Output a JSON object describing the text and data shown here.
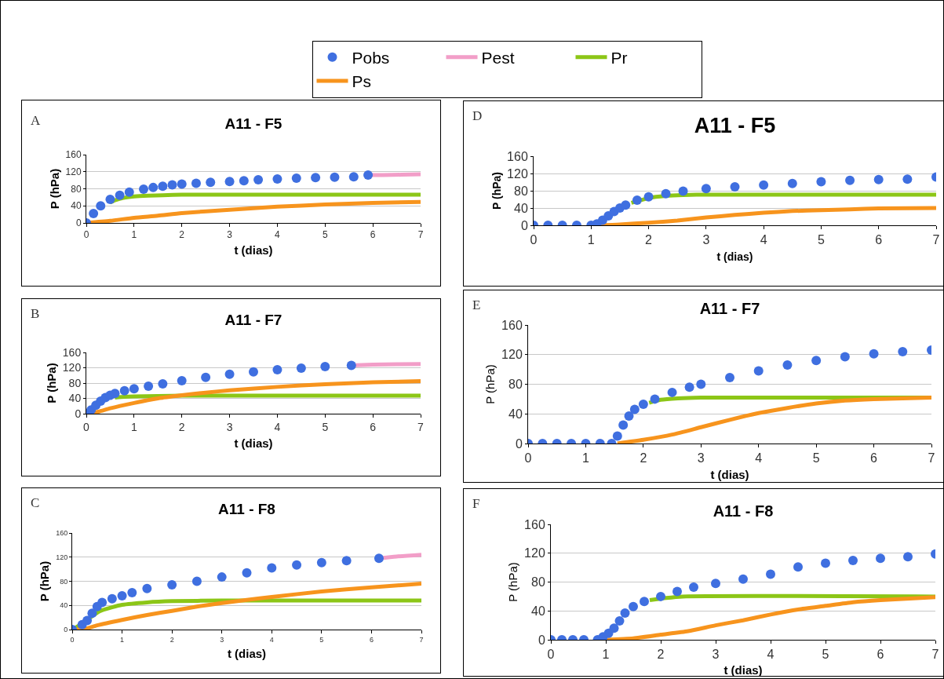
{
  "chart_data": [
    {
      "type": "line",
      "title": "A11 - F5",
      "xlabel": "t (dias)",
      "ylabel": "P (hPa)",
      "annotations": [
        "A"
      ],
      "xlim": [
        0,
        7
      ],
      "ylim": [
        0,
        160
      ],
      "xticks": [
        0,
        1,
        2,
        3,
        4,
        5,
        6,
        7
      ],
      "yticks": [
        0,
        40,
        80,
        120,
        160
      ],
      "grid": "y",
      "legend": "top",
      "line_style": "solid",
      "series": [
        {
          "name": "Pobs",
          "type": "scatter",
          "marker": "circle",
          "color": "#3f6fe0",
          "x": [
            0,
            0.15,
            0.3,
            0.5,
            0.7,
            0.9,
            1.2,
            1.4,
            1.6,
            1.8,
            2,
            2.3,
            2.6,
            3,
            3.3,
            3.6,
            4,
            4.4,
            4.8,
            5.2,
            5.6,
            5.9
          ],
          "values": [
            0,
            22,
            40,
            55,
            65,
            72,
            79,
            83,
            86,
            89,
            91,
            93,
            95,
            97,
            99,
            101,
            103,
            105,
            106,
            107,
            108,
            112
          ]
        },
        {
          "name": "Pest",
          "color": "#f29ec8",
          "x": [
            5.9,
            6.2,
            6.6,
            7
          ],
          "values": [
            112,
            112,
            113,
            114
          ]
        },
        {
          "name": "Pr",
          "color": "#8cc617",
          "x": [
            0.5,
            0.6,
            0.8,
            1,
            1.3,
            1.6,
            2,
            3,
            7
          ],
          "values": [
            48,
            53,
            59,
            62,
            64,
            65,
            66,
            66,
            66
          ]
        },
        {
          "name": "Ps",
          "color": "#f7941d",
          "x": [
            0,
            0.5,
            1,
            1.5,
            2,
            3,
            4,
            5,
            6,
            7
          ],
          "values": [
            0,
            5,
            12,
            17,
            23,
            31,
            38,
            43,
            47,
            49
          ]
        }
      ]
    },
    {
      "type": "line",
      "title": "A11 - F7",
      "xlabel": "t (dias)",
      "ylabel": "P (hPa)",
      "annotations": [
        "B"
      ],
      "xlim": [
        0,
        7
      ],
      "ylim": [
        0,
        160
      ],
      "xticks": [
        0,
        1,
        2,
        3,
        4,
        5,
        6,
        7
      ],
      "yticks": [
        0,
        40,
        80,
        120,
        160
      ],
      "grid": "y",
      "line_style": "solid",
      "series": [
        {
          "type": "scatter",
          "marker": "circle",
          "color": "#3f6fe0",
          "x": [
            0,
            0.1,
            0.2,
            0.3,
            0.4,
            0.5,
            0.6,
            0.8,
            1,
            1.3,
            1.6,
            2,
            2.5,
            3,
            3.5,
            4,
            4.5,
            5,
            5.55
          ],
          "values": [
            0,
            10,
            22,
            33,
            42,
            48,
            53,
            60,
            65,
            72,
            78,
            86,
            95,
            103,
            109,
            115,
            119,
            123,
            126
          ]
        },
        {
          "color": "#f29ec8",
          "x": [
            5.55,
            6,
            6.5,
            7
          ],
          "values": [
            126,
            128,
            129,
            130
          ]
        },
        {
          "color": "#8cc617",
          "x": [
            0.6,
            0.8,
            1,
            1.5,
            2,
            7
          ],
          "values": [
            42,
            44,
            45,
            46,
            47,
            47
          ]
        },
        {
          "color": "#f7941d",
          "x": [
            0,
            0.25,
            0.5,
            1,
            1.5,
            2,
            2.5,
            3,
            4,
            5,
            6,
            7
          ],
          "values": [
            0,
            5,
            14,
            28,
            40,
            48,
            55,
            61,
            70,
            77,
            82,
            85
          ]
        }
      ]
    },
    {
      "type": "line",
      "title": "A11 - F8",
      "xlabel": "t (dias)",
      "ylabel": "P (hPa)",
      "annotations": [
        "C"
      ],
      "xlim": [
        0,
        7
      ],
      "ylim": [
        0,
        160
      ],
      "xticks": [
        0,
        1,
        2,
        3,
        4,
        5,
        6,
        7
      ],
      "yticks": [
        0,
        40,
        80,
        120,
        160
      ],
      "grid": "y",
      "line_style": "solid",
      "series": [
        {
          "type": "scatter",
          "marker": "circle",
          "color": "#3f6fe0",
          "x": [
            0,
            0.2,
            0.3,
            0.4,
            0.5,
            0.6,
            0.8,
            1,
            1.2,
            1.5,
            2,
            2.5,
            3,
            3.5,
            4,
            4.5,
            5,
            5.5,
            6.15
          ],
          "values": [
            0,
            8,
            15,
            27,
            38,
            45,
            51,
            56,
            61,
            68,
            74,
            80,
            87,
            94,
            102,
            107,
            111,
            114,
            118
          ]
        },
        {
          "color": "#f29ec8",
          "x": [
            6.15,
            6.5,
            7
          ],
          "values": [
            118,
            121,
            124
          ]
        },
        {
          "color": "#8cc617",
          "x": [
            0,
            0.2,
            0.4,
            0.5,
            0.6,
            0.8,
            1,
            1.5,
            2,
            3,
            4,
            7
          ],
          "values": [
            0,
            10,
            22,
            28,
            32,
            37,
            41,
            45,
            47,
            48,
            48,
            48
          ]
        },
        {
          "color": "#f7941d",
          "x": [
            0,
            0.25,
            0.5,
            1,
            1.5,
            2,
            2.5,
            3,
            3.5,
            4,
            5,
            6,
            7
          ],
          "values": [
            0,
            1,
            7,
            16,
            24,
            31,
            38,
            44,
            49,
            54,
            63,
            70,
            76
          ]
        }
      ]
    },
    {
      "type": "line",
      "title": "A11 - F5",
      "xlabel": "t (dias)",
      "ylabel": "P (hPa)",
      "annotations": [
        "D"
      ],
      "xlim": [
        0,
        7
      ],
      "ylim": [
        0,
        160
      ],
      "xticks": [
        0,
        1,
        2,
        3,
        4,
        5,
        6,
        7
      ],
      "yticks": [
        0,
        40,
        80,
        120,
        160
      ],
      "grid": "y",
      "line_style": "solid",
      "series": [
        {
          "type": "scatter",
          "marker": "circle",
          "color": "#3f6fe0",
          "x": [
            0,
            0.25,
            0.5,
            0.75,
            1,
            1.1,
            1.2,
            1.3,
            1.4,
            1.5,
            1.6,
            1.8,
            2,
            2.3,
            2.6,
            3,
            3.5,
            4,
            4.5,
            5,
            5.5,
            6,
            6.5,
            7
          ],
          "values": [
            0,
            0,
            0,
            0,
            0,
            3,
            12,
            22,
            32,
            40,
            47,
            58,
            66,
            73,
            79,
            85,
            89,
            93,
            97,
            101,
            104,
            106,
            107,
            112
          ]
        },
        {
          "color": "#8cc617",
          "x": [
            1.7,
            2,
            2.3,
            2.6,
            3,
            7
          ],
          "values": [
            52,
            63,
            68,
            70,
            71,
            71
          ]
        },
        {
          "color": "#f7941d",
          "x": [
            1.1,
            1.5,
            2,
            2.5,
            3,
            3.5,
            4,
            4.5,
            5,
            5.5,
            6,
            7
          ],
          "values": [
            0,
            2,
            6,
            11,
            18,
            24,
            29,
            33,
            35,
            37,
            39,
            40
          ]
        }
      ]
    },
    {
      "type": "line",
      "title": "A11 - F7",
      "xlabel": "t (dias)",
      "ylabel": "P (hPa)",
      "annotations": [
        "E"
      ],
      "xlim": [
        0,
        7
      ],
      "ylim": [
        0,
        160
      ],
      "xticks": [
        0,
        1,
        2,
        3,
        4,
        5,
        6,
        7
      ],
      "yticks": [
        0,
        40,
        80,
        120,
        160
      ],
      "grid": "y",
      "line_style": "solid",
      "series": [
        {
          "type": "scatter",
          "marker": "circle",
          "color": "#3f6fe0",
          "x": [
            0,
            0.25,
            0.5,
            0.75,
            1,
            1.25,
            1.45,
            1.55,
            1.65,
            1.75,
            1.85,
            2,
            2.2,
            2.5,
            2.8,
            3,
            3.5,
            4,
            4.5,
            5,
            5.5,
            6,
            6.5,
            7
          ],
          "values": [
            0,
            0,
            0,
            0,
            0,
            0,
            0,
            10,
            25,
            37,
            46,
            53,
            60,
            69,
            76,
            80,
            89,
            98,
            106,
            112,
            117,
            121,
            124,
            126
          ]
        },
        {
          "color": "#8cc617",
          "x": [
            2.1,
            2.3,
            2.6,
            3,
            7
          ],
          "values": [
            55,
            59,
            61,
            62,
            62
          ]
        },
        {
          "color": "#f7941d",
          "x": [
            1.55,
            2,
            2.5,
            3,
            3.5,
            4,
            4.5,
            5,
            5.5,
            6,
            7
          ],
          "values": [
            0,
            5,
            12,
            22,
            32,
            41,
            48,
            54,
            58,
            60,
            62
          ]
        }
      ]
    },
    {
      "type": "line",
      "title": "A11 - F8",
      "xlabel": "t (dias)",
      "ylabel": "P (hPa)",
      "annotations": [
        "F"
      ],
      "xlim": [
        0,
        7
      ],
      "ylim": [
        0,
        160
      ],
      "xticks": [
        0,
        1,
        2,
        3,
        4,
        5,
        6,
        7
      ],
      "yticks": [
        0,
        40,
        80,
        120,
        160
      ],
      "grid": "y",
      "line_style": "solid",
      "series": [
        {
          "type": "scatter",
          "marker": "circle",
          "color": "#3f6fe0",
          "x": [
            0,
            0.2,
            0.4,
            0.6,
            0.85,
            0.95,
            1.05,
            1.15,
            1.25,
            1.35,
            1.5,
            1.7,
            2,
            2.3,
            2.6,
            3,
            3.5,
            4,
            4.5,
            5,
            5.5,
            6,
            6.5,
            7
          ],
          "values": [
            0,
            0,
            0,
            0,
            0,
            4,
            9,
            16,
            26,
            37,
            46,
            53,
            60,
            67,
            73,
            78,
            84,
            91,
            101,
            106,
            110,
            113,
            115,
            119
          ]
        },
        {
          "color": "#8cc617",
          "x": [
            1.8,
            2.1,
            2.4,
            7
          ],
          "values": [
            55,
            58,
            60,
            60
          ]
        },
        {
          "color": "#f7941d",
          "x": [
            1,
            1.5,
            2,
            2.5,
            3,
            3.5,
            4,
            4.5,
            5,
            5.5,
            6,
            7
          ],
          "values": [
            0,
            2,
            7,
            12,
            20,
            27,
            35,
            42,
            47,
            52,
            55,
            59
          ]
        }
      ]
    }
  ]
}
